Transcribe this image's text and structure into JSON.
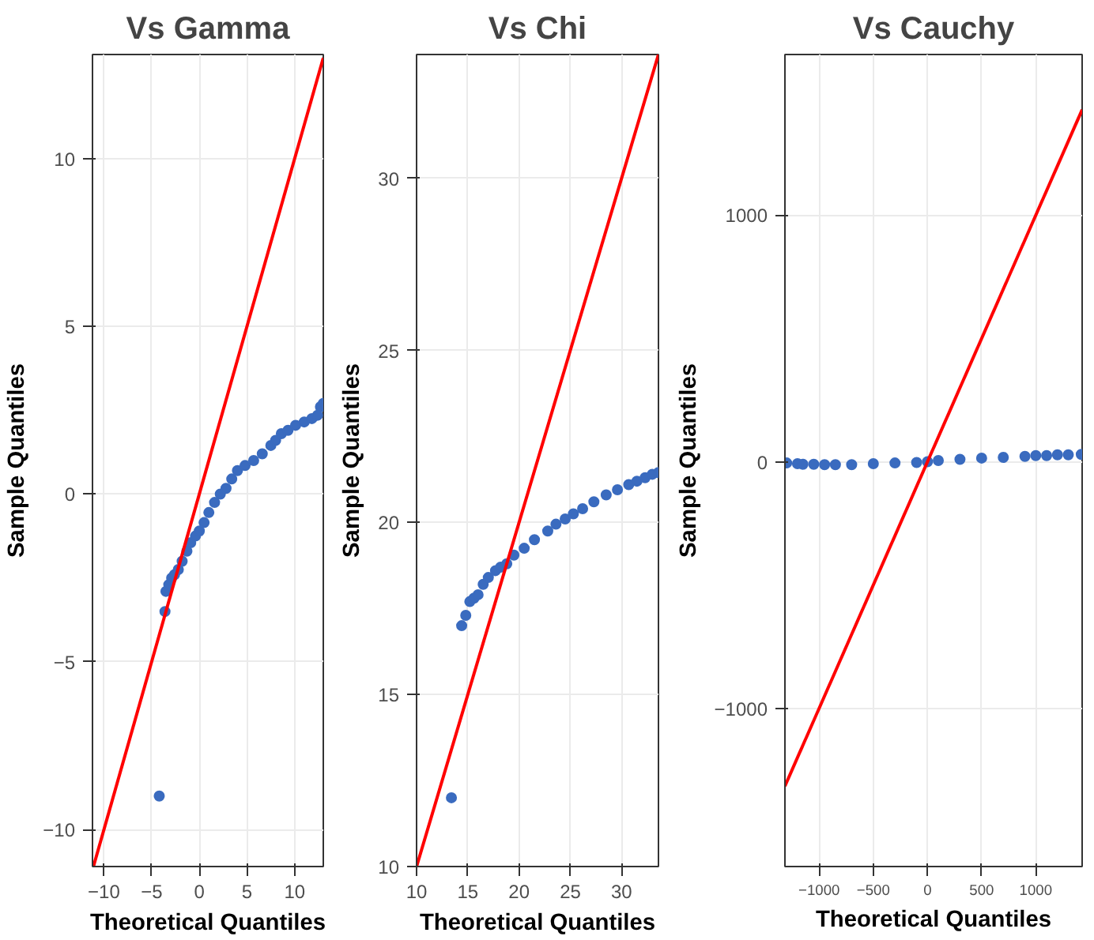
{
  "chart_data": [
    {
      "type": "scatter",
      "title": "Vs Gamma",
      "xlabel": "Theoretical Quantiles",
      "ylabel": "Sample Quantiles",
      "xlim": [
        -11.2,
        13
      ],
      "ylim": [
        -11.1,
        13.1
      ],
      "xticks": [
        -10,
        -5,
        0,
        5,
        10
      ],
      "yticks": [
        -10,
        -5,
        0,
        5,
        10
      ],
      "grid": true,
      "series": [
        {
          "marker": "circle",
          "color": "#3a6bbf",
          "x": [
            -4.2,
            -3.6,
            -3.5,
            -3.2,
            -2.9,
            -2.6,
            -2.2,
            -1.8,
            -1.3,
            -0.9,
            -0.4,
            0.0,
            0.5,
            1.0,
            1.6,
            2.2,
            2.8,
            3.4,
            4.0,
            4.8,
            5.7,
            6.6,
            7.5,
            8.0,
            8.6,
            9.3,
            10.1,
            11.0,
            11.8,
            12.4,
            12.7,
            13.0
          ],
          "values": [
            -9.0,
            -3.5,
            -2.9,
            -2.7,
            -2.5,
            -2.4,
            -2.25,
            -2.0,
            -1.7,
            -1.45,
            -1.25,
            -1.1,
            -0.85,
            -0.55,
            -0.25,
            0.0,
            0.17,
            0.45,
            0.7,
            0.85,
            1.0,
            1.2,
            1.45,
            1.6,
            1.8,
            1.9,
            2.05,
            2.15,
            2.25,
            2.35,
            2.6,
            2.7
          ]
        },
        {
          "type": "line",
          "color": "#ff0000",
          "x": [
            -11.1,
            13
          ],
          "values": [
            -11.1,
            13
          ]
        }
      ]
    },
    {
      "type": "scatter",
      "title": "Vs Chi",
      "xlabel": "Theoretical Quantiles",
      "ylabel": "Sample Quantiles",
      "xlim": [
        10,
        33.6
      ],
      "ylim": [
        10,
        33.6
      ],
      "xticks": [
        10,
        15,
        20,
        25,
        30
      ],
      "yticks": [
        10,
        15,
        20,
        25,
        30
      ],
      "grid": true,
      "series": [
        {
          "marker": "circle",
          "color": "#3a6bbf",
          "x": [
            13.4,
            14.4,
            14.8,
            15.2,
            15.6,
            16.0,
            16.5,
            17.0,
            17.7,
            18.2,
            18.8,
            19.5,
            20.5,
            21.5,
            22.8,
            23.6,
            24.5,
            25.3,
            26.2,
            27.3,
            28.5,
            29.6,
            30.7,
            31.5,
            32.3,
            33.0,
            33.6
          ],
          "values": [
            12.0,
            17.0,
            17.3,
            17.7,
            17.8,
            17.9,
            18.2,
            18.4,
            18.6,
            18.7,
            18.8,
            19.05,
            19.25,
            19.5,
            19.75,
            19.95,
            20.1,
            20.25,
            20.4,
            20.6,
            20.8,
            20.95,
            21.1,
            21.2,
            21.3,
            21.4,
            21.45
          ]
        },
        {
          "type": "line",
          "color": "#ff0000",
          "x": [
            10,
            33.6
          ],
          "values": [
            10,
            33.6
          ]
        }
      ]
    },
    {
      "type": "scatter",
      "title": "Vs Cauchy",
      "xlabel": "Theoretical Quantiles",
      "ylabel": "Sample Quantiles",
      "xlim": [
        -1316,
        1428
      ],
      "ylim": [
        -1642,
        1652
      ],
      "xticks": [
        -1000,
        -500,
        0,
        500,
        1000
      ],
      "yticks": [
        -1000,
        0,
        1000
      ],
      "grid": true,
      "series": [
        {
          "marker": "circle",
          "color": "#3a6bbf",
          "x": [
            -1300,
            -1200,
            -1150,
            -1050,
            -950,
            -850,
            -700,
            -500,
            -300,
            -100,
            0,
            100,
            300,
            500,
            700,
            900,
            1000,
            1100,
            1200,
            1300,
            1420
          ],
          "values": [
            -5,
            -8,
            -10,
            -10,
            -12,
            -12,
            -12,
            -8,
            -5,
            -3,
            0,
            5,
            10,
            15,
            18,
            22,
            25,
            25,
            28,
            28,
            30
          ]
        },
        {
          "type": "line",
          "color": "#ff0000",
          "x": [
            -1316,
            1428
          ],
          "values": [
            -1316,
            1428
          ]
        }
      ]
    }
  ]
}
